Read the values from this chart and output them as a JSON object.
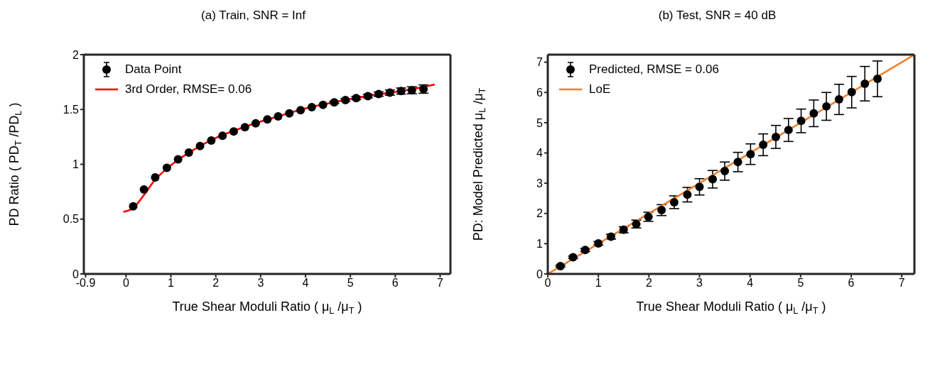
{
  "chart_data": [
    {
      "type": "scatter",
      "title": "(a) Train, SNR = Inf",
      "xlabel": "True Shear Moduli Ratio ( μ$_{L}$/μ$_{T}$ )",
      "ylabel": "PD Ratio ( PD$_{T}$/PD$_{L}$ )",
      "xlim": [
        -0.94,
        7.23
      ],
      "xticks": [
        -0.9,
        0,
        1,
        2,
        3,
        4,
        5,
        6,
        7
      ],
      "ylim": [
        0,
        2
      ],
      "yticks": [
        0,
        0.5,
        1,
        1.5,
        2
      ],
      "legend": "top left",
      "grid": false,
      "series": [
        {
          "name": "Data Point",
          "type": "scatter",
          "color": "#000000",
          "marker": "circle",
          "x": [
            0.16,
            0.4,
            0.65,
            0.91,
            1.16,
            1.4,
            1.65,
            1.9,
            2.15,
            2.4,
            2.65,
            2.89,
            3.15,
            3.39,
            3.64,
            3.89,
            4.14,
            4.39,
            4.64,
            4.89,
            5.13,
            5.39,
            5.63,
            5.88,
            6.13,
            6.37,
            6.63
          ],
          "values": [
            0.616,
            0.77,
            0.88,
            0.967,
            1.045,
            1.107,
            1.166,
            1.217,
            1.26,
            1.3,
            1.338,
            1.373,
            1.409,
            1.437,
            1.464,
            1.494,
            1.521,
            1.542,
            1.565,
            1.586,
            1.604,
            1.622,
            1.64,
            1.654,
            1.668,
            1.675,
            1.686
          ],
          "errors": [
            null,
            null,
            null,
            null,
            null,
            null,
            null,
            null,
            null,
            null,
            null,
            null,
            null,
            null,
            null,
            null,
            null,
            null,
            0.01,
            0.012,
            0.014,
            0.016,
            0.02,
            0.024,
            0.028,
            0.032,
            0.038
          ]
        },
        {
          "name": "3rd Order, RMSE= 0.06",
          "type": "line",
          "color": "#ff0000",
          "marker": "none",
          "x": [
            -0.06,
            0.16,
            0.4,
            0.65,
            0.91,
            1.16,
            1.5,
            2,
            2.5,
            3,
            3.5,
            4,
            4.5,
            5,
            5.5,
            6,
            6.5,
            6.88
          ],
          "values": [
            0.566,
            0.6,
            0.72,
            0.86,
            0.96,
            1.04,
            1.13,
            1.24,
            1.32,
            1.39,
            1.45,
            1.51,
            1.555,
            1.595,
            1.63,
            1.66,
            1.695,
            1.728
          ]
        }
      ]
    },
    {
      "type": "scatter",
      "title": "(b) Test, SNR = 40 dB",
      "xlabel": "True Shear Moduli Ratio ( μ$_{L}$/μ$_{T}$ )",
      "ylabel": "PD: Model Predicted μ$_{L}$/μ$_{T}$",
      "xlim": [
        0,
        7.25
      ],
      "xticks": [
        0,
        1,
        2,
        3,
        4,
        5,
        6,
        7
      ],
      "ylim": [
        0,
        7.25
      ],
      "yticks": [
        0,
        1,
        2,
        3,
        4,
        5,
        6,
        7
      ],
      "legend": "top left",
      "grid": false,
      "series": [
        {
          "name": "Predicted, RMSE = 0.06",
          "type": "scatter",
          "color": "#000000",
          "marker": "circle",
          "x": [
            0.25,
            0.5,
            0.74,
            1.0,
            1.25,
            1.5,
            1.75,
            1.99,
            2.25,
            2.5,
            2.76,
            3.0,
            3.26,
            3.5,
            3.76,
            4.01,
            4.26,
            4.51,
            4.76,
            5.01,
            5.26,
            5.51,
            5.76,
            6.01,
            6.27,
            6.52
          ],
          "values": [
            0.26,
            0.55,
            0.79,
            1.01,
            1.23,
            1.46,
            1.65,
            1.89,
            2.11,
            2.37,
            2.62,
            2.88,
            3.13,
            3.4,
            3.7,
            3.96,
            4.27,
            4.53,
            4.76,
            5.06,
            5.31,
            5.54,
            5.77,
            6.01,
            6.29,
            6.45
          ],
          "errors": [
            0.03,
            0.04,
            0.05,
            0.06,
            0.08,
            0.1,
            0.13,
            0.15,
            0.18,
            0.21,
            0.24,
            0.27,
            0.29,
            0.3,
            0.32,
            0.34,
            0.36,
            0.38,
            0.38,
            0.39,
            0.44,
            0.46,
            0.5,
            0.52,
            0.57,
            0.59
          ]
        },
        {
          "name": "LoE",
          "type": "line",
          "color": "#f07f2a",
          "marker": "none",
          "x": [
            0,
            7.25
          ],
          "values": [
            0,
            7.25
          ]
        }
      ]
    }
  ]
}
